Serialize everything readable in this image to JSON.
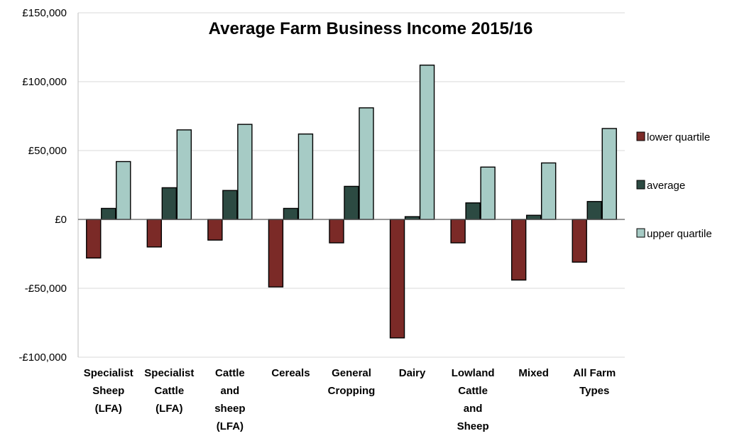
{
  "chart_data": {
    "type": "bar",
    "title": "Average  Farm Business Income 2015/16",
    "xlabel": "",
    "ylabel": "",
    "ylim": [
      -100000,
      150000
    ],
    "yticks": [
      150000,
      100000,
      50000,
      0,
      -50000,
      -100000
    ],
    "ytick_labels": [
      "£150,000",
      "£100,000",
      "£50,000",
      "£0",
      "-£50,000",
      "-£100,000"
    ],
    "grid": true,
    "legend_position": "right",
    "categories": [
      [
        "Specialist",
        "Sheep",
        "(LFA)"
      ],
      [
        "Specialist",
        "Cattle",
        "(LFA)"
      ],
      [
        "Cattle",
        "and",
        "sheep",
        "(LFA)"
      ],
      [
        "Cereals"
      ],
      [
        "General",
        "Cropping"
      ],
      [
        "Dairy"
      ],
      [
        "Lowland",
        "Cattle",
        "and",
        "Sheep"
      ],
      [
        "Mixed"
      ],
      [
        "All Farm",
        "Types"
      ]
    ],
    "series": [
      {
        "name": "lower quartile",
        "color": "#7b2a27",
        "values": [
          -28000,
          -20000,
          -15000,
          -49000,
          -17000,
          -86000,
          -17000,
          -44000,
          -31000
        ]
      },
      {
        "name": "average",
        "color": "#2c4a42",
        "values": [
          8000,
          23000,
          21000,
          8000,
          24000,
          2000,
          12000,
          3000,
          13000
        ]
      },
      {
        "name": "upper quartile",
        "color": "#a6cbc5",
        "values": [
          42000,
          65000,
          69000,
          62000,
          81000,
          112000,
          38000,
          41000,
          66000
        ]
      }
    ]
  }
}
